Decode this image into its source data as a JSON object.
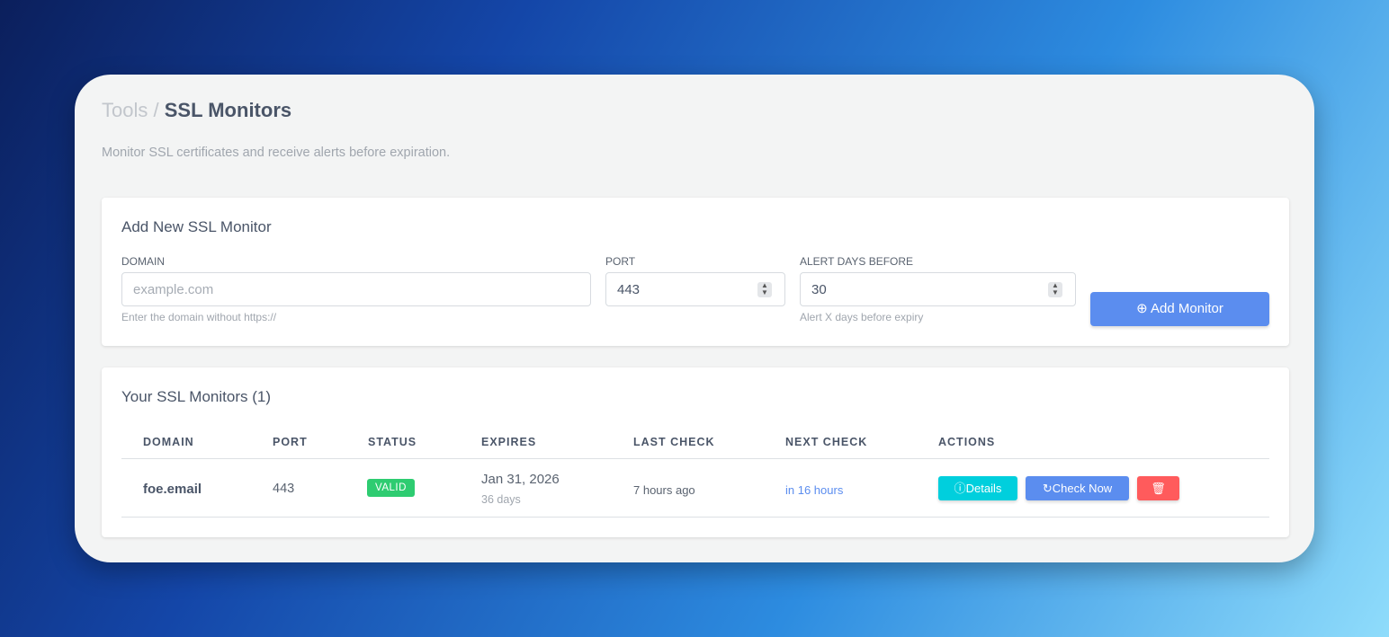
{
  "breadcrumb": {
    "parent": "Tools",
    "separator": "/",
    "current": "SSL Monitors"
  },
  "subtitle": "Monitor SSL certificates and receive alerts before expiration.",
  "form": {
    "title": "Add New SSL Monitor",
    "domain_label": "DOMAIN",
    "domain_placeholder": "example.com",
    "domain_hint": "Enter the domain without https://",
    "port_label": "PORT",
    "port_value": "443",
    "alert_label": "ALERT DAYS BEFORE",
    "alert_value": "30",
    "alert_hint": "Alert X days before expiry",
    "submit": "Add Monitor"
  },
  "monitors": {
    "title": "Your SSL Monitors (1)",
    "columns": [
      "DOMAIN",
      "PORT",
      "STATUS",
      "EXPIRES",
      "LAST CHECK",
      "NEXT CHECK",
      "ACTIONS"
    ],
    "rows": [
      {
        "domain": "foe.email",
        "port": "443",
        "status": "VALID",
        "expires": "Jan 31, 2026",
        "expires_days": "36 days",
        "last_check": "7 hours ago",
        "next_check": "in 16 hours",
        "details": "Details",
        "check_now": "Check Now"
      }
    ]
  },
  "colors": {
    "accent": "#5b8def",
    "valid": "#2ecc71",
    "details": "#00cfdd",
    "delete": "#ff5b5c",
    "next_check": "#5b8def"
  }
}
